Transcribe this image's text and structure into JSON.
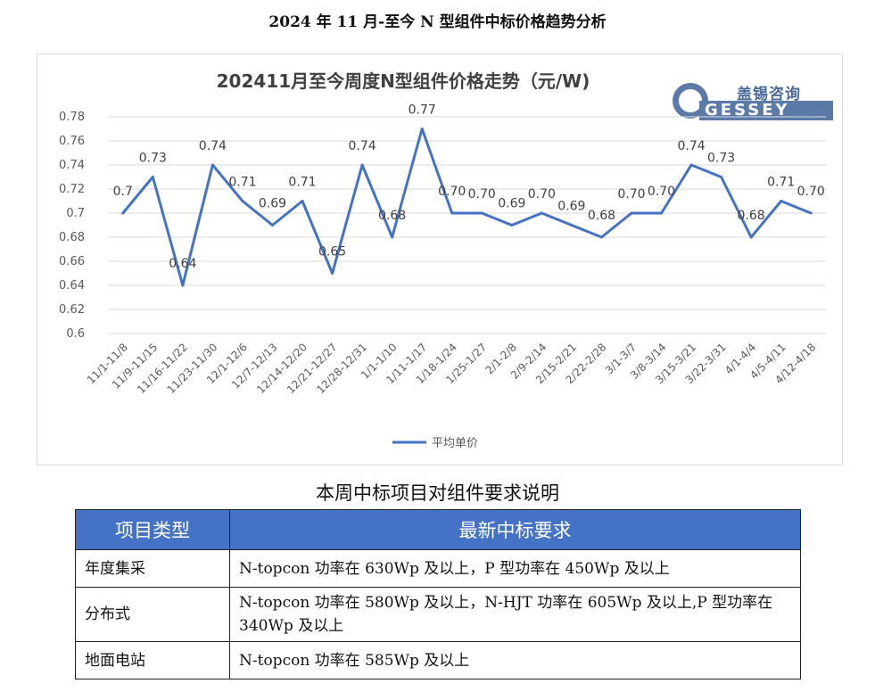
{
  "doc_title": "2024 年 11 月-至今 N 型组件中标价格趋势分析",
  "logo": {
    "cn": "盖锡咨询",
    "en": "GESSEY"
  },
  "colors": {
    "line": "#4472c4",
    "header_bg": "#4472c4",
    "grid": "#d9d9d9"
  },
  "chart_data": {
    "type": "line",
    "title": "202411月至今周度N型组件价格走势（元/W)",
    "xlabel": "",
    "ylabel": "",
    "ylim": [
      0.6,
      0.78
    ],
    "yticks": [
      "0.6",
      "0.62",
      "0.64",
      "0.66",
      "0.68",
      "0.7",
      "0.72",
      "0.74",
      "0.76",
      "0.78"
    ],
    "grid": true,
    "legend": "bottom",
    "categories": [
      "11/1-11/8",
      "11/9-11/15",
      "11/16-11/22",
      "11/23-11/30",
      "12/1-12/6",
      "12/7-12/13",
      "12/14-12/20",
      "12/21-12/27",
      "12/28-12/31",
      "1/1-1/10",
      "1/11-1/17",
      "1/18-1/24",
      "1/25-1/27",
      "2/1-2/8",
      "2/9-2/14",
      "2/15-2/21",
      "2/22-2/28",
      "3/1-3/7",
      "3/8-3/14",
      "3/15-3/21",
      "3/22-3/31",
      "4/1-4/4",
      "4/5-4/11",
      "4/12-4/18"
    ],
    "series": [
      {
        "name": "平均单价",
        "values": [
          0.7,
          0.73,
          0.64,
          0.74,
          0.71,
          0.69,
          0.71,
          0.65,
          0.74,
          0.68,
          0.77,
          0.7,
          0.7,
          0.69,
          0.7,
          0.69,
          0.68,
          0.7,
          0.7,
          0.74,
          0.73,
          0.68,
          0.71,
          0.7
        ],
        "labels": [
          "0.7",
          "0.73",
          "0.64",
          "0.74",
          "0.71",
          "0.69",
          "0.71",
          "0.65",
          "0.74",
          "0.68",
          "0.77",
          "0.70",
          "0.70",
          "0.69",
          "0.70",
          "0.69",
          "0.68",
          "0.70",
          "0.70",
          "0.74",
          "0.73",
          "0.68",
          "0.71",
          "0.70"
        ]
      }
    ]
  },
  "requirements": {
    "title": "本周中标项目对组件要求说明",
    "headers": [
      "项目类型",
      "最新中标要求"
    ],
    "rows": [
      {
        "type": "年度集采",
        "req": "N-topcon 功率在 630Wp 及以上，P 型功率在 450Wp 及以上"
      },
      {
        "type": "分布式",
        "req": "N-topcon 功率在 580Wp 及以上，N-HJT 功率在 605Wp 及以上,P 型功率在 340Wp 及以上"
      },
      {
        "type": "地面电站",
        "req": "N-topcon 功率在 585Wp 及以上"
      }
    ]
  }
}
